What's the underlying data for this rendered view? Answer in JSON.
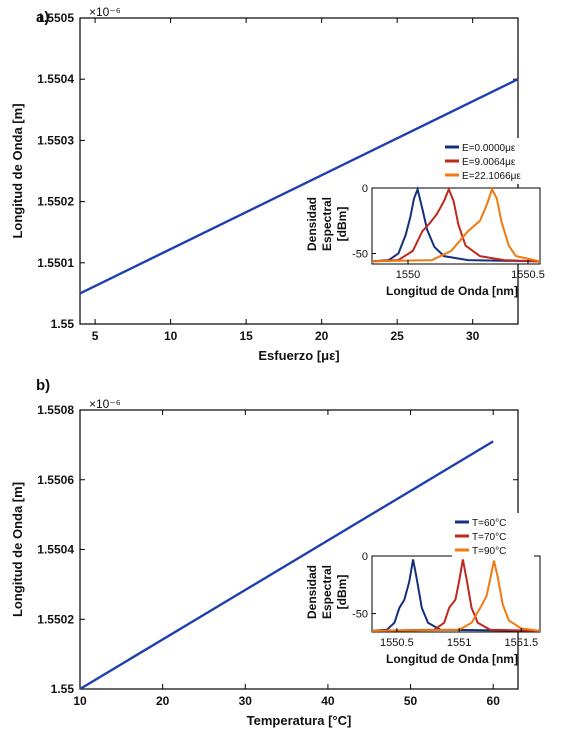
{
  "chart_data": [
    {
      "panel": "a)",
      "type": "line",
      "exponent": "×10⁻⁶",
      "xlabel": "Esfuerzo [με]",
      "ylabel": "Longitud de Onda [m]",
      "xlim": [
        4,
        33
      ],
      "ylim": [
        1.55,
        1.5505
      ],
      "xticks": [
        5,
        10,
        15,
        20,
        25,
        30
      ],
      "yticks": [
        1.55,
        1.5501,
        1.5502,
        1.5503,
        1.5504,
        1.5505
      ],
      "ytick_labels": [
        "1.55",
        "1.5501",
        "1.5502",
        "1.5503",
        "1.5504",
        "1.5505"
      ],
      "line_color": "#1f3fb0",
      "series": [
        {
          "x": [
            4,
            33
          ],
          "y": [
            1.55005,
            1.5504
          ]
        }
      ],
      "inset": {
        "type": "line",
        "xlabel": "Longitud de Onda [nm]",
        "ylabel_lines": [
          "Densidad",
          "Espectral",
          "[dBm]"
        ],
        "xlim": [
          1549.85,
          1550.55
        ],
        "ylim": [
          -58,
          0
        ],
        "xticks": [
          1550,
          1550.5
        ],
        "xtick_labels": [
          "1550",
          "1550.5"
        ],
        "yticks": [
          0,
          -50
        ],
        "ytick_labels": [
          "0",
          "-50"
        ],
        "series": [
          {
            "name": "E=0.0000με",
            "color": "#13307a",
            "x": [
              1549.85,
              1549.92,
              1549.96,
              1549.99,
              1550.01,
              1550.025,
              1550.04,
              1550.06,
              1550.08,
              1550.11,
              1550.15,
              1550.25,
              1550.55
            ],
            "y": [
              -56,
              -55,
              -50,
              -36,
              -22,
              -8,
              -1,
              -16,
              -32,
              -45,
              -52,
              -55,
              -56
            ]
          },
          {
            "name": "E=9.0064με",
            "color": "#c0281c",
            "x": [
              1549.85,
              1549.96,
              1550.02,
              1550.06,
              1550.09,
              1550.12,
              1550.15,
              1550.17,
              1550.19,
              1550.21,
              1550.24,
              1550.3,
              1550.4,
              1550.55
            ],
            "y": [
              -56,
              -55,
              -48,
              -33,
              -27,
              -20,
              -10,
              -1,
              -10,
              -28,
              -44,
              -52,
              -55,
              -56
            ]
          },
          {
            "name": "E=22.1066με",
            "color": "#f07a10",
            "x": [
              1549.85,
              1550.1,
              1550.18,
              1550.25,
              1550.3,
              1550.33,
              1550.35,
              1550.37,
              1550.39,
              1550.42,
              1550.45,
              1550.55
            ],
            "y": [
              -56,
              -55,
              -48,
              -33,
              -25,
              -12,
              -1,
              -8,
              -26,
              -44,
              -52,
              -56
            ]
          }
        ]
      }
    },
    {
      "panel": "b)",
      "type": "line",
      "exponent": "×10⁻⁶",
      "xlabel": "Temperatura [°C]",
      "ylabel": "Longitud de Onda [m]",
      "xlim": [
        10,
        63
      ],
      "ylim": [
        1.55,
        1.5508
      ],
      "xticks": [
        10,
        20,
        30,
        40,
        50,
        60
      ],
      "yticks": [
        1.55,
        1.5502,
        1.5504,
        1.5506,
        1.5508
      ],
      "ytick_labels": [
        "1.55",
        "1.5502",
        "1.5504",
        "1.5506",
        "1.5508"
      ],
      "line_color": "#1f3fb0",
      "series": [
        {
          "x": [
            10,
            60
          ],
          "y": [
            1.55,
            1.55071
          ]
        }
      ],
      "inset": {
        "type": "line",
        "xlabel": "Longitud de Onda [nm]",
        "ylabel_lines": [
          "Densidad",
          "Espectral",
          "[dBm]"
        ],
        "xlim": [
          1550.3,
          1551.65
        ],
        "ylim": [
          -66,
          0
        ],
        "xticks": [
          1550.5,
          1551,
          1551.5
        ],
        "xtick_labels": [
          "1550.5",
          "1551",
          "1551.5"
        ],
        "yticks": [
          0,
          -50
        ],
        "ytick_labels": [
          "0",
          "-50"
        ],
        "series": [
          {
            "name": "T=60°C",
            "color": "#13307a",
            "x": [
              1550.3,
              1550.42,
              1550.48,
              1550.52,
              1550.56,
              1550.6,
              1550.63,
              1550.66,
              1550.7,
              1550.75,
              1550.85,
              1551.65
            ],
            "y": [
              -65,
              -64,
              -58,
              -45,
              -38,
              -22,
              -3,
              -20,
              -45,
              -58,
              -64,
              -65
            ]
          },
          {
            "name": "T=70°C",
            "color": "#c0281c",
            "x": [
              1550.3,
              1550.8,
              1550.88,
              1550.92,
              1550.97,
              1551.0,
              1551.03,
              1551.06,
              1551.1,
              1551.15,
              1551.25,
              1551.65
            ],
            "y": [
              -65,
              -64,
              -58,
              -45,
              -38,
              -22,
              -3,
              -20,
              -45,
              -58,
              -64,
              -65
            ]
          },
          {
            "name": "T=90°C",
            "color": "#f07a10",
            "x": [
              1550.3,
              1551.0,
              1551.1,
              1551.17,
              1551.22,
              1551.25,
              1551.28,
              1551.31,
              1551.35,
              1551.4,
              1551.5,
              1551.65
            ],
            "y": [
              -65,
              -64,
              -58,
              -45,
              -35,
              -20,
              -4,
              -18,
              -42,
              -56,
              -63,
              -65
            ]
          }
        ]
      }
    }
  ]
}
